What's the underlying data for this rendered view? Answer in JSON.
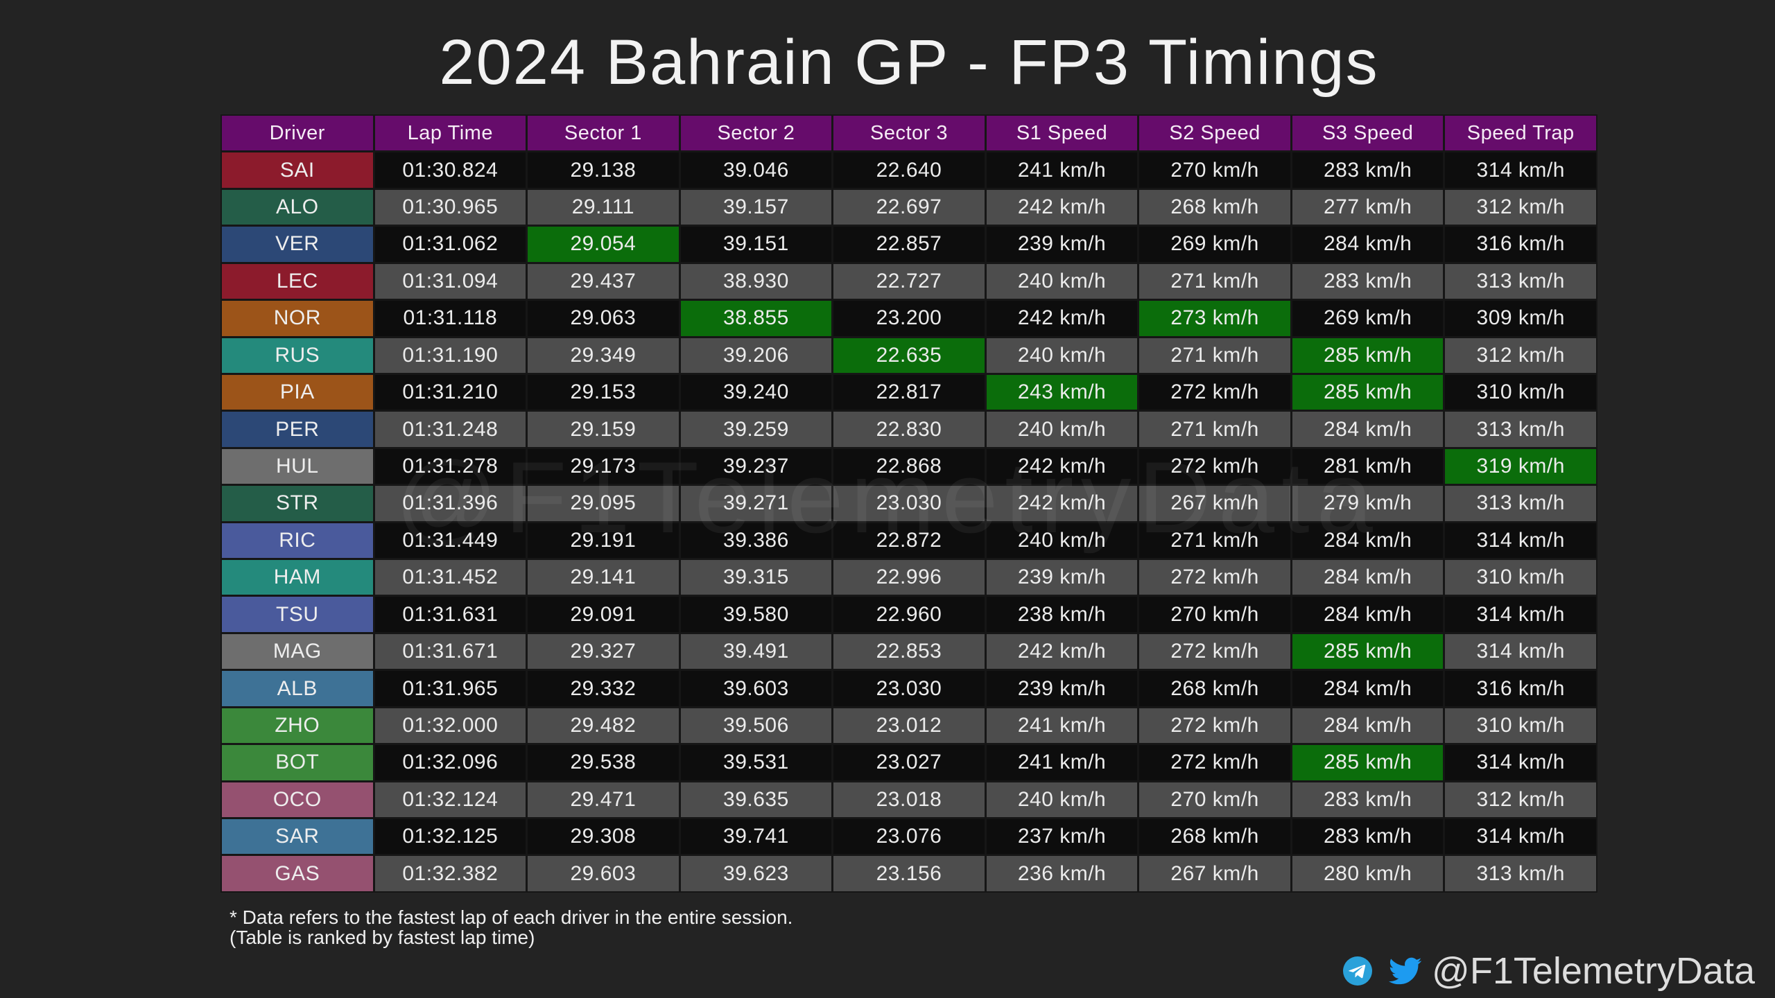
{
  "colors": {
    "background": "#232323",
    "header": "#660c6b",
    "highlight": "#0b6d0b",
    "row_dark": "#0d0d0d",
    "row_light": "#4d4d4d"
  },
  "chart_data": {
    "type": "table",
    "title": "2024 Bahrain GP - FP3 Timings",
    "columns": [
      "Driver",
      "Lap Time",
      "Sector 1",
      "Sector 2",
      "Sector 3",
      "S1 Speed",
      "S2 Speed",
      "S3 Speed",
      "Speed Trap"
    ],
    "rows": [
      {
        "driver": "SAI",
        "team_color": "#8c1b2c",
        "values": [
          "01:30.824",
          "29.138",
          "39.046",
          "22.640",
          "241 km/h",
          "270 km/h",
          "283 km/h",
          "314 km/h"
        ],
        "fastest": []
      },
      {
        "driver": "ALO",
        "team_color": "#245d48",
        "values": [
          "01:30.965",
          "29.111",
          "39.157",
          "22.697",
          "242 km/h",
          "268 km/h",
          "277 km/h",
          "312 km/h"
        ],
        "fastest": []
      },
      {
        "driver": "VER",
        "team_color": "#2c4876",
        "values": [
          "01:31.062",
          "29.054",
          "39.151",
          "22.857",
          "239 km/h",
          "269 km/h",
          "284 km/h",
          "316 km/h"
        ],
        "fastest": [
          "Sector 1"
        ]
      },
      {
        "driver": "LEC",
        "team_color": "#8c1b2c",
        "values": [
          "01:31.094",
          "29.437",
          "38.930",
          "22.727",
          "240 km/h",
          "271 km/h",
          "283 km/h",
          "313 km/h"
        ],
        "fastest": []
      },
      {
        "driver": "NOR",
        "team_color": "#9c5419",
        "values": [
          "01:31.118",
          "29.063",
          "38.855",
          "23.200",
          "242 km/h",
          "273 km/h",
          "269 km/h",
          "309 km/h"
        ],
        "fastest": [
          "Sector 2",
          "S2 Speed"
        ]
      },
      {
        "driver": "RUS",
        "team_color": "#248a7c",
        "values": [
          "01:31.190",
          "29.349",
          "39.206",
          "22.635",
          "240 km/h",
          "271 km/h",
          "285 km/h",
          "312 km/h"
        ],
        "fastest": [
          "Sector 3",
          "S3 Speed"
        ]
      },
      {
        "driver": "PIA",
        "team_color": "#9c5419",
        "values": [
          "01:31.210",
          "29.153",
          "39.240",
          "22.817",
          "243 km/h",
          "272 km/h",
          "285 km/h",
          "310 km/h"
        ],
        "fastest": [
          "S1 Speed",
          "S3 Speed"
        ]
      },
      {
        "driver": "PER",
        "team_color": "#2c4876",
        "values": [
          "01:31.248",
          "29.159",
          "39.259",
          "22.830",
          "240 km/h",
          "271 km/h",
          "284 km/h",
          "313 km/h"
        ],
        "fastest": []
      },
      {
        "driver": "HUL",
        "team_color": "#6e6e6e",
        "values": [
          "01:31.278",
          "29.173",
          "39.237",
          "22.868",
          "242 km/h",
          "272 km/h",
          "281 km/h",
          "319 km/h"
        ],
        "fastest": [
          "Speed Trap"
        ]
      },
      {
        "driver": "STR",
        "team_color": "#245d48",
        "values": [
          "01:31.396",
          "29.095",
          "39.271",
          "23.030",
          "242 km/h",
          "267 km/h",
          "279 km/h",
          "313 km/h"
        ],
        "fastest": []
      },
      {
        "driver": "RIC",
        "team_color": "#4a5a9c",
        "values": [
          "01:31.449",
          "29.191",
          "39.386",
          "22.872",
          "240 km/h",
          "271 km/h",
          "284 km/h",
          "314 km/h"
        ],
        "fastest": []
      },
      {
        "driver": "HAM",
        "team_color": "#248a7c",
        "values": [
          "01:31.452",
          "29.141",
          "39.315",
          "22.996",
          "239 km/h",
          "272 km/h",
          "284 km/h",
          "310 km/h"
        ],
        "fastest": []
      },
      {
        "driver": "TSU",
        "team_color": "#4a5a9c",
        "values": [
          "01:31.631",
          "29.091",
          "39.580",
          "22.960",
          "238 km/h",
          "270 km/h",
          "284 km/h",
          "314 km/h"
        ],
        "fastest": []
      },
      {
        "driver": "MAG",
        "team_color": "#6e6e6e",
        "values": [
          "01:31.671",
          "29.327",
          "39.491",
          "22.853",
          "242 km/h",
          "272 km/h",
          "285 km/h",
          "314 km/h"
        ],
        "fastest": [
          "S3 Speed"
        ]
      },
      {
        "driver": "ALB",
        "team_color": "#3e7296",
        "values": [
          "01:31.965",
          "29.332",
          "39.603",
          "23.030",
          "239 km/h",
          "268 km/h",
          "284 km/h",
          "316 km/h"
        ],
        "fastest": []
      },
      {
        "driver": "ZHO",
        "team_color": "#3b883b",
        "values": [
          "01:32.000",
          "29.482",
          "39.506",
          "23.012",
          "241 km/h",
          "272 km/h",
          "284 km/h",
          "310 km/h"
        ],
        "fastest": []
      },
      {
        "driver": "BOT",
        "team_color": "#3b883b",
        "values": [
          "01:32.096",
          "29.538",
          "39.531",
          "23.027",
          "241 km/h",
          "272 km/h",
          "285 km/h",
          "314 km/h"
        ],
        "fastest": [
          "S3 Speed"
        ]
      },
      {
        "driver": "OCO",
        "team_color": "#955170",
        "values": [
          "01:32.124",
          "29.471",
          "39.635",
          "23.018",
          "240 km/h",
          "270 km/h",
          "283 km/h",
          "312 km/h"
        ],
        "fastest": []
      },
      {
        "driver": "SAR",
        "team_color": "#3e7296",
        "values": [
          "01:32.125",
          "29.308",
          "39.741",
          "23.076",
          "237 km/h",
          "268 km/h",
          "283 km/h",
          "314 km/h"
        ],
        "fastest": []
      },
      {
        "driver": "GAS",
        "team_color": "#955170",
        "values": [
          "01:32.382",
          "29.603",
          "39.623",
          "23.156",
          "236 km/h",
          "267 km/h",
          "280 km/h",
          "313 km/h"
        ],
        "fastest": []
      }
    ]
  },
  "footnotes": [
    "* Data refers to the fastest lap of each driver in the entire session.",
    "(Table is ranked by fastest lap time)"
  ],
  "branding": {
    "handle": "@F1TelemetryData",
    "watermark": "@F1TelemetryData",
    "icons": [
      "telegram-icon",
      "twitter-icon"
    ],
    "telegram_color": "#2aa1da",
    "twitter_color": "#1d9bf0"
  }
}
